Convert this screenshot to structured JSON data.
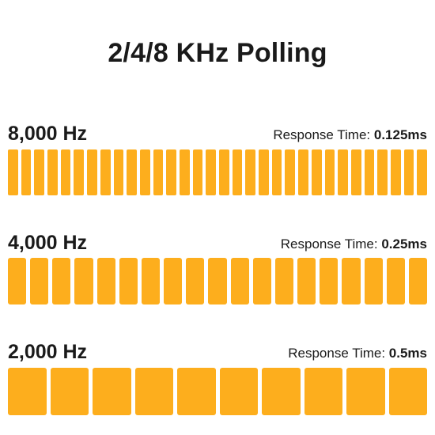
{
  "title": "2/4/8 KHz Polling",
  "colors": {
    "bar": "#fdae1d",
    "text": "#1a1a1a",
    "background": "#ffffff"
  },
  "rows": [
    {
      "frequency": "8,000 Hz",
      "response_label": "Response Time: ",
      "response_value": "0.125ms",
      "bar_count": 32
    },
    {
      "frequency": "4,000 Hz",
      "response_label": "Response Time: ",
      "response_value": "0.25ms",
      "bar_count": 19
    },
    {
      "frequency": "2,000 Hz",
      "response_label": "Response Time: ",
      "response_value": "0.5ms",
      "bar_count": 10
    }
  ]
}
